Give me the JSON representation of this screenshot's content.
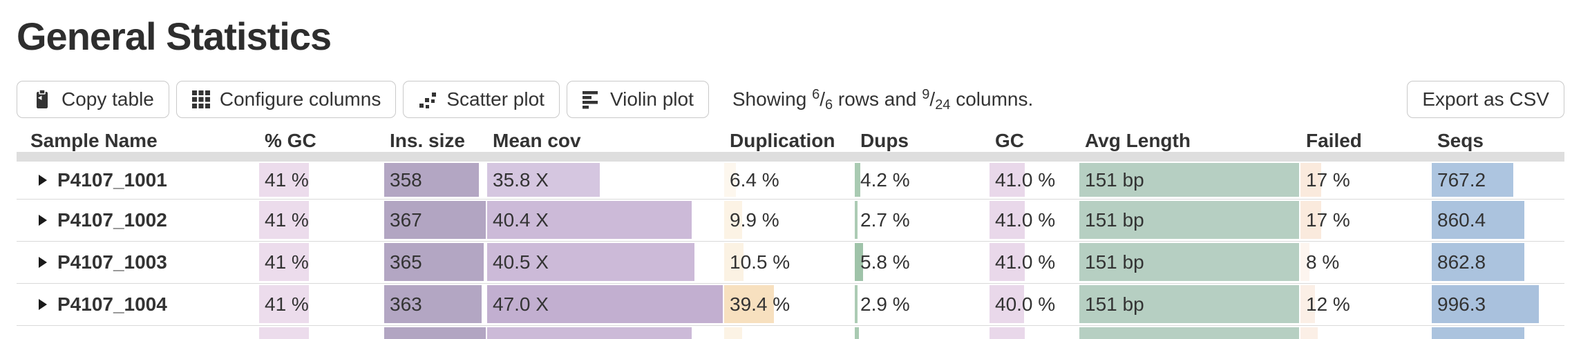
{
  "header": {
    "title": "General Statistics"
  },
  "toolbar": {
    "buttons": [
      {
        "label": "Copy table",
        "icon": "clipboard-icon"
      },
      {
        "label": "Configure columns",
        "icon": "grid-icon"
      },
      {
        "label": "Scatter plot",
        "icon": "scatter-icon"
      },
      {
        "label": "Violin plot",
        "icon": "violin-icon"
      }
    ],
    "showing": {
      "prefix": "Showing",
      "rows_shown": "6",
      "rows_total": "6",
      "middle": "rows and",
      "cols_shown": "9",
      "cols_total": "24",
      "suffix": "columns."
    },
    "export_label": "Export as CSV"
  },
  "table": {
    "columns": [
      "Sample Name",
      "% GC",
      "Ins. size",
      "Mean cov",
      "Duplication",
      "Dups",
      "GC",
      "Avg Length",
      "Failed",
      "Seqs"
    ],
    "rows": [
      {
        "name": "P4107_1001",
        "cells": [
          {
            "text": "41 %",
            "bar": 41,
            "color": "#ecdcec"
          },
          {
            "text": "358",
            "bar": 93,
            "color": "#b3a6c3"
          },
          {
            "text": "35.8 X",
            "bar": 48,
            "color": "#d5c6e0"
          },
          {
            "text": "6.4 %",
            "bar": 10,
            "color": "#fdf7ee"
          },
          {
            "text": "4.2 %",
            "bar": 5,
            "color": "#a9cab2"
          },
          {
            "text": "41.0 %",
            "bar": 41,
            "color": "#e9d8ea"
          },
          {
            "text": "151 bp",
            "bar": 100,
            "color": "#b6cfc2"
          },
          {
            "text": "17 %",
            "bar": 17,
            "color": "#faeadd"
          },
          {
            "text": "767.2",
            "bar": 62,
            "color": "#adc5e0"
          }
        ]
      },
      {
        "name": "P4107_1002",
        "cells": [
          {
            "text": "41 %",
            "bar": 41,
            "color": "#ecdcec"
          },
          {
            "text": "367",
            "bar": 100,
            "color": "#b2a5c2"
          },
          {
            "text": "40.4 X",
            "bar": 87,
            "color": "#ccbad8"
          },
          {
            "text": "9.9 %",
            "bar": 15,
            "color": "#fcf3e5"
          },
          {
            "text": "2.7 %",
            "bar": 3,
            "color": "#accbb4"
          },
          {
            "text": "41.0 %",
            "bar": 41,
            "color": "#e9d8ea"
          },
          {
            "text": "151 bp",
            "bar": 100,
            "color": "#b6cfc2"
          },
          {
            "text": "17 %",
            "bar": 17,
            "color": "#faeadd"
          },
          {
            "text": "860.4",
            "bar": 70,
            "color": "#abc3de"
          }
        ]
      },
      {
        "name": "P4107_1003",
        "cells": [
          {
            "text": "41 %",
            "bar": 41,
            "color": "#ecdcec"
          },
          {
            "text": "365",
            "bar": 98,
            "color": "#b3a6c3"
          },
          {
            "text": "40.5 X",
            "bar": 88,
            "color": "#ccbad8"
          },
          {
            "text": "10.5 %",
            "bar": 16,
            "color": "#fbf2e3"
          },
          {
            "text": "5.8 %",
            "bar": 7,
            "color": "#9fc3a9"
          },
          {
            "text": "41.0 %",
            "bar": 41,
            "color": "#e9d8ea"
          },
          {
            "text": "151 bp",
            "bar": 100,
            "color": "#b6cfc2"
          },
          {
            "text": "8 %",
            "bar": 8,
            "color": "#fdf5ef"
          },
          {
            "text": "862.8",
            "bar": 70,
            "color": "#abc3de"
          }
        ]
      },
      {
        "name": "P4107_1004",
        "cells": [
          {
            "text": "41 %",
            "bar": 41,
            "color": "#ecdcec"
          },
          {
            "text": "363",
            "bar": 96,
            "color": "#b3a6c3"
          },
          {
            "text": "47.0 X",
            "bar": 100,
            "color": "#c2afd0"
          },
          {
            "text": "39.4 %",
            "bar": 39,
            "color": "#f7e0bf"
          },
          {
            "text": "2.9 %",
            "bar": 3,
            "color": "#accbb4"
          },
          {
            "text": "40.0 %",
            "bar": 40,
            "color": "#e9d8ea"
          },
          {
            "text": "151 bp",
            "bar": 100,
            "color": "#b6cfc2"
          },
          {
            "text": "12 %",
            "bar": 12,
            "color": "#fbefe6"
          },
          {
            "text": "996.3",
            "bar": 81,
            "color": "#a9c1dd"
          }
        ]
      }
    ],
    "partial_row_bars": [
      {
        "bar": 41,
        "color": "#ecdcec"
      },
      {
        "bar": 100,
        "color": "#b2a5c2"
      },
      {
        "bar": 87,
        "color": "#ccbad8"
      },
      {
        "bar": 15,
        "color": "#fcf3e5"
      },
      {
        "bar": 4,
        "color": "#a9cab2"
      },
      {
        "bar": 41,
        "color": "#e9d8ea"
      },
      {
        "bar": 100,
        "color": "#b6cfc2"
      },
      {
        "bar": 14,
        "color": "#fbefe6"
      },
      {
        "bar": 70,
        "color": "#abc3de"
      }
    ]
  }
}
